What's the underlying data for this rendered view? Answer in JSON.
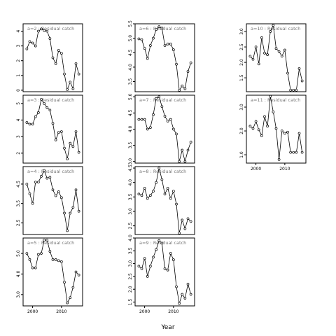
{
  "figure": {
    "xlabel": "Year"
  },
  "chart_data": [
    {
      "type": "line",
      "title": "a=2 : Residual catch",
      "x": [
        1998,
        1999,
        2000,
        2001,
        2002,
        2003,
        2004,
        2005,
        2006,
        2007,
        2008,
        2009,
        2010,
        2011,
        2012,
        2013,
        2014,
        2015,
        2016
      ],
      "values": [
        2.8,
        3.3,
        3.2,
        3.0,
        4.0,
        4.15,
        4.05,
        4.0,
        3.5,
        2.2,
        1.8,
        2.7,
        2.5,
        1.1,
        0.05,
        0.55,
        0.1,
        1.8,
        1.1
      ],
      "ylim": [
        -0.1,
        4.5
      ],
      "yticks": [
        "0",
        "1",
        "2",
        "3",
        "4"
      ],
      "xticks": []
    },
    {
      "type": "line",
      "title": "a=3 : Residual catch",
      "x": [
        1998,
        1999,
        2000,
        2001,
        2002,
        2003,
        2004,
        2005,
        2006,
        2007,
        2008,
        2009,
        2010,
        2011,
        2012,
        2013,
        2014,
        2015,
        2016
      ],
      "values": [
        3.85,
        3.75,
        3.75,
        4.2,
        4.45,
        5.25,
        5.0,
        4.75,
        4.6,
        3.8,
        2.8,
        3.25,
        3.3,
        2.3,
        1.65,
        2.6,
        2.4,
        3.3,
        2.05
      ],
      "ylim": [
        1.4,
        5.5
      ],
      "yticks": [
        "2",
        "3",
        "4",
        "5"
      ],
      "xticks": []
    },
    {
      "type": "line",
      "title": "a=4 : Residual catch",
      "x": [
        1998,
        1999,
        2000,
        2001,
        2002,
        2003,
        2004,
        2005,
        2006,
        2007,
        2008,
        2009,
        2010,
        2011,
        2012,
        2013,
        2014,
        2015,
        2016
      ],
      "values": [
        4.5,
        4.0,
        3.5,
        4.6,
        4.6,
        4.9,
        5.2,
        4.8,
        4.85,
        4.2,
        3.9,
        4.1,
        3.8,
        3.0,
        2.1,
        3.0,
        3.3,
        4.2,
        3.1
      ],
      "ylim": [
        1.9,
        5.4
      ],
      "yticks": [
        "2.5",
        "3.5",
        "4.5"
      ],
      "xticks": []
    },
    {
      "type": "line",
      "title": "a=5 : Residual catch",
      "x": [
        1998,
        1999,
        2000,
        2001,
        2002,
        2003,
        2004,
        2005,
        2006,
        2007,
        2008,
        2009,
        2010,
        2011,
        2012,
        2013,
        2014,
        2015,
        2016
      ],
      "values": [
        5.0,
        4.7,
        4.3,
        4.3,
        4.95,
        5.0,
        5.65,
        5.65,
        5.1,
        4.7,
        4.7,
        4.65,
        4.6,
        3.6,
        2.6,
        2.85,
        3.35,
        4.1,
        3.95
      ],
      "ylim": [
        2.45,
        5.75
      ],
      "yticks": [
        "3.0",
        "4.0",
        "5.0"
      ],
      "xticks": [
        "2000",
        "2010"
      ]
    },
    {
      "type": "line",
      "title": "a=6 : Residual catch",
      "x": [
        1998,
        1999,
        2000,
        2001,
        2002,
        2003,
        2004,
        2005,
        2006,
        2007,
        2008,
        2009,
        2010,
        2011,
        2012,
        2013,
        2014,
        2015,
        2016
      ],
      "values": [
        4.98,
        4.95,
        4.65,
        4.3,
        4.75,
        5.0,
        5.3,
        5.4,
        5.35,
        4.75,
        4.8,
        4.8,
        4.6,
        4.1,
        3.2,
        3.35,
        3.25,
        3.85,
        4.15
      ],
      "ylim": [
        3.15,
        5.5
      ],
      "yticks": [
        "3.5",
        "4.0",
        "4.5",
        "5.0",
        "5.5"
      ],
      "xticks": []
    },
    {
      "type": "line",
      "title": "a=7 : Residual catch",
      "x": [
        1998,
        1999,
        2000,
        2001,
        2002,
        2003,
        2004,
        2005,
        2006,
        2007,
        2008,
        2009,
        2010,
        2011,
        2012,
        2013,
        2014,
        2015,
        2016
      ],
      "values": [
        4.3,
        4.3,
        4.3,
        4.0,
        4.05,
        4.45,
        4.95,
        5.0,
        4.7,
        4.4,
        4.25,
        4.3,
        4.0,
        3.85,
        3.0,
        3.35,
        3.0,
        3.35,
        3.6
      ],
      "ylim": [
        2.95,
        5.05
      ],
      "yticks": [
        "3.0",
        "3.5",
        "4.0",
        "4.5",
        "5.0"
      ],
      "xticks": []
    },
    {
      "type": "line",
      "title": "a=8 : Residual catch",
      "x": [
        1998,
        1999,
        2000,
        2001,
        2002,
        2003,
        2004,
        2005,
        2006,
        2007,
        2008,
        2009,
        2010,
        2011,
        2012,
        2013,
        2014,
        2015,
        2016
      ],
      "values": [
        3.6,
        3.55,
        3.8,
        3.45,
        3.55,
        3.7,
        4.0,
        4.5,
        4.1,
        3.6,
        3.8,
        3.45,
        3.7,
        3.25,
        2.25,
        2.7,
        2.4,
        2.75,
        2.65
      ],
      "ylim": [
        2.2,
        4.55
      ],
      "yticks": [
        "2.5",
        "3.0",
        "3.5",
        "4.0",
        "4.5"
      ],
      "xticks": []
    },
    {
      "type": "line",
      "title": "a=9 : Residual catch",
      "x": [
        1998,
        1999,
        2000,
        2001,
        2002,
        2003,
        2004,
        2005,
        2006,
        2007,
        2008,
        2009,
        2010,
        2011,
        2012,
        2013,
        2014,
        2015,
        2016
      ],
      "values": [
        2.9,
        2.8,
        3.2,
        2.5,
        2.9,
        3.25,
        3.55,
        3.9,
        3.8,
        2.8,
        2.75,
        3.4,
        3.15,
        2.1,
        1.45,
        1.8,
        1.65,
        2.2,
        1.8
      ],
      "ylim": [
        1.35,
        4.0
      ],
      "yticks": [
        "1.5",
        "2.0",
        "2.5",
        "3.0",
        "3.5",
        "4.0"
      ],
      "xticks": [
        "2000",
        "2010"
      ]
    },
    {
      "type": "line",
      "title": "a=10 : Residual catch",
      "x": [
        1998,
        1999,
        2000,
        2001,
        2002,
        2003,
        2004,
        2005,
        2006,
        2007,
        2008,
        2009,
        2010,
        2011,
        2012,
        2013,
        2014,
        2015,
        2016
      ],
      "values": [
        2.2,
        2.1,
        2.5,
        1.95,
        2.8,
        2.3,
        2.25,
        3.0,
        3.2,
        2.45,
        2.35,
        2.2,
        2.4,
        1.65,
        1.1,
        1.1,
        1.1,
        1.8,
        1.4
      ],
      "ylim": [
        1.05,
        3.25
      ],
      "yticks": [
        "1.5",
        "2.0",
        "2.5",
        "3.0"
      ],
      "xticks": []
    },
    {
      "type": "line",
      "title": "a=11 : Residual catch",
      "x": [
        1998,
        1999,
        2000,
        2001,
        2002,
        2003,
        2004,
        2005,
        2006,
        2007,
        2008,
        2009,
        2010,
        2011,
        2012,
        2013,
        2014,
        2015,
        2016
      ],
      "values": [
        2.2,
        2.1,
        2.4,
        2.05,
        1.8,
        2.6,
        2.2,
        3.45,
        2.8,
        2.1,
        0.8,
        2.0,
        1.9,
        1.95,
        1.1,
        1.1,
        1.1,
        1.9,
        1.1
      ],
      "ylim": [
        0.65,
        3.5
      ],
      "yticks": [
        "1.0",
        "2.0",
        "3.0"
      ],
      "xticks": [
        "2000",
        "2010"
      ]
    }
  ]
}
